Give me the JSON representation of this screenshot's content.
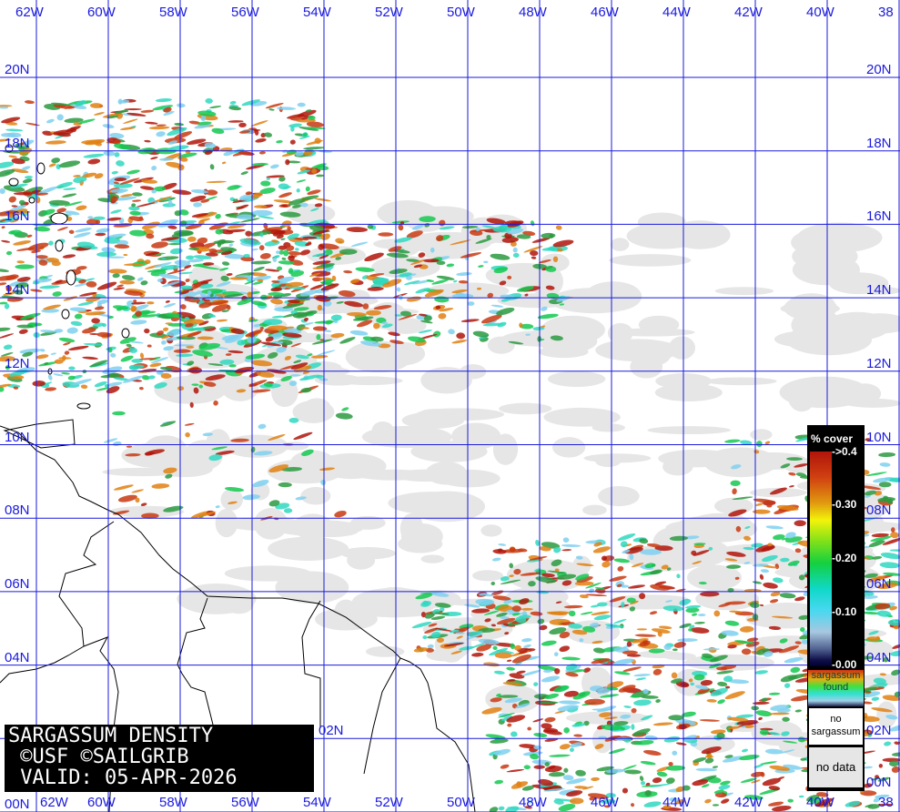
{
  "map": {
    "longitude_labels": [
      "62W",
      "60W",
      "58W",
      "56W",
      "54W",
      "52W",
      "50W",
      "48W",
      "46W",
      "44W",
      "42W",
      "40W",
      "38"
    ],
    "latitude_labels": [
      "20N",
      "18N",
      "16N",
      "14N",
      "12N",
      "10N",
      "08N",
      "06N",
      "04N",
      "02N",
      "00N"
    ],
    "grid_color": "#1a1adc",
    "land_color": "#ffffff",
    "no_data_color": "#e6e6e6",
    "coastline_color": "#000000"
  },
  "title_box": {
    "line1": "SARGASSUM DENSITY",
    "line2": " ©USF ©SAILGRIB",
    "line3": " VALID: 05-APR-2026"
  },
  "legend": {
    "heading": "% cover",
    "ticks": [
      "->0.4",
      "-0.30",
      "-0.20",
      "-0.10",
      "-0.00"
    ],
    "found_line1": "sargassum",
    "found_line2": "found",
    "no_sargassum_line1": "no",
    "no_sargassum_line2": "sargassum",
    "no_data": "no data",
    "colors": [
      "#b0150a",
      "#e09a10",
      "#f3f30a",
      "#14d040",
      "#10d8c8",
      "#a8c8e0",
      "#10104a"
    ]
  }
}
